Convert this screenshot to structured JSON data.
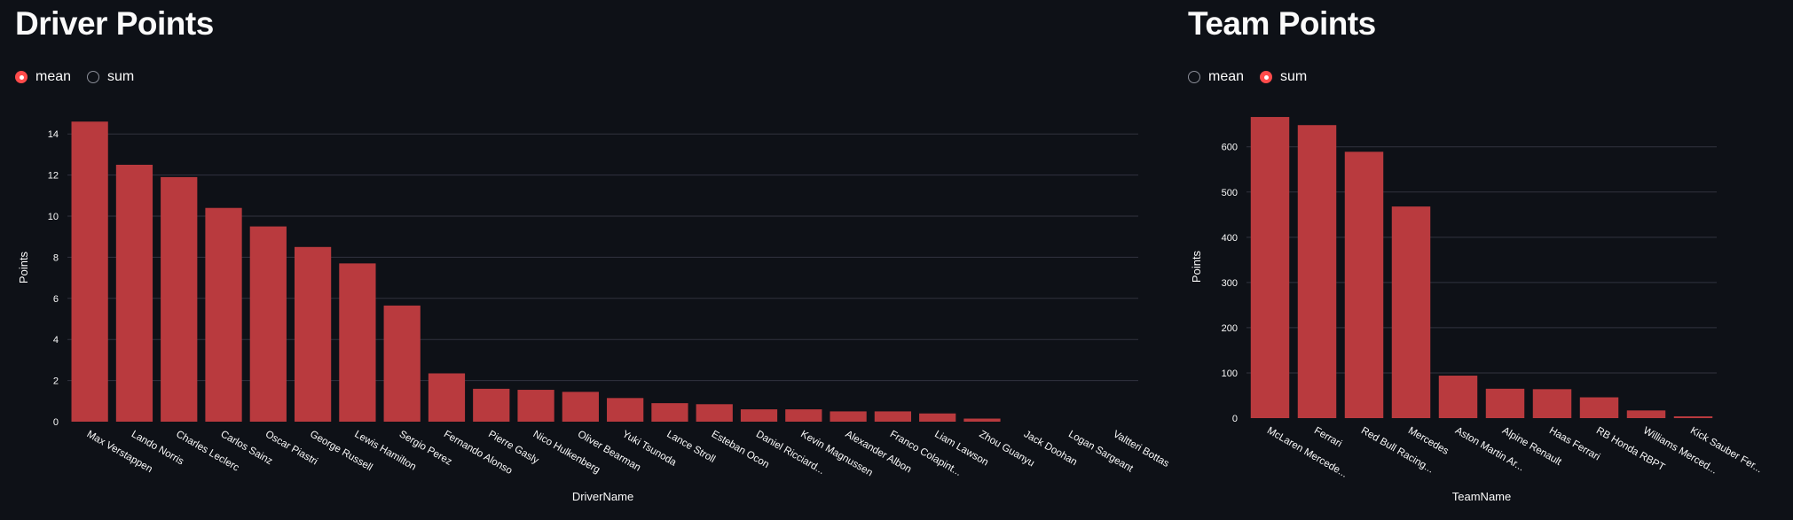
{
  "driver_panel": {
    "title": "Driver Points",
    "options": [
      {
        "label": "mean",
        "selected": true
      },
      {
        "label": "sum",
        "selected": false
      }
    ]
  },
  "team_panel": {
    "title": "Team Points",
    "options": [
      {
        "label": "mean",
        "selected": false
      },
      {
        "label": "sum",
        "selected": true
      }
    ]
  },
  "colors": {
    "bar": "#b93a3e",
    "grid": "#31333f",
    "accent": "#ff4b4b",
    "background": "#0e1117"
  },
  "chart_data": [
    {
      "type": "bar",
      "title": "",
      "xlabel": "DriverName",
      "ylabel": "Points",
      "ylim": [
        0,
        15
      ],
      "yticks": [
        0,
        2,
        4,
        6,
        8,
        10,
        12,
        14
      ],
      "grid": true,
      "categories": [
        "Max Verstappen",
        "Lando Norris",
        "Charles Leclerc",
        "Carlos Sainz",
        "Oscar Piastri",
        "George Russell",
        "Lewis Hamilton",
        "Sergio Perez",
        "Fernando Alonso",
        "Pierre Gasly",
        "Nico Hulkenberg",
        "Oliver Bearman",
        "Yuki Tsunoda",
        "Lance Stroll",
        "Esteban Ocon",
        "Daniel Ricciard...",
        "Kevin Magnussen",
        "Alexander Albon",
        "Franco Colapint...",
        "Liam Lawson",
        "Zhou Guanyu",
        "Jack Doohan",
        "Logan Sargeant",
        "Valtteri Bottas"
      ],
      "values": [
        14.6,
        12.5,
        11.9,
        10.4,
        9.5,
        8.5,
        7.7,
        5.65,
        2.35,
        1.6,
        1.55,
        1.45,
        1.15,
        0.9,
        0.85,
        0.6,
        0.6,
        0.5,
        0.5,
        0.4,
        0.15,
        0,
        0,
        0
      ]
    },
    {
      "type": "bar",
      "title": "",
      "xlabel": "TeamName",
      "ylabel": "Points",
      "ylim": [
        0,
        670
      ],
      "yticks": [
        0,
        100,
        200,
        300,
        400,
        500,
        600
      ],
      "grid": true,
      "categories": [
        "McLaren Mercede...",
        "Ferrari",
        "Red Bull Racing...",
        "Mercedes",
        "Aston Martin Ar...",
        "Alpine Renault",
        "Haas Ferrari",
        "RB Honda RBPT",
        "Williams Merced...",
        "Kick Sauber Fer..."
      ],
      "values": [
        666,
        648,
        589,
        468,
        94,
        65,
        64,
        46,
        17,
        4
      ]
    }
  ]
}
